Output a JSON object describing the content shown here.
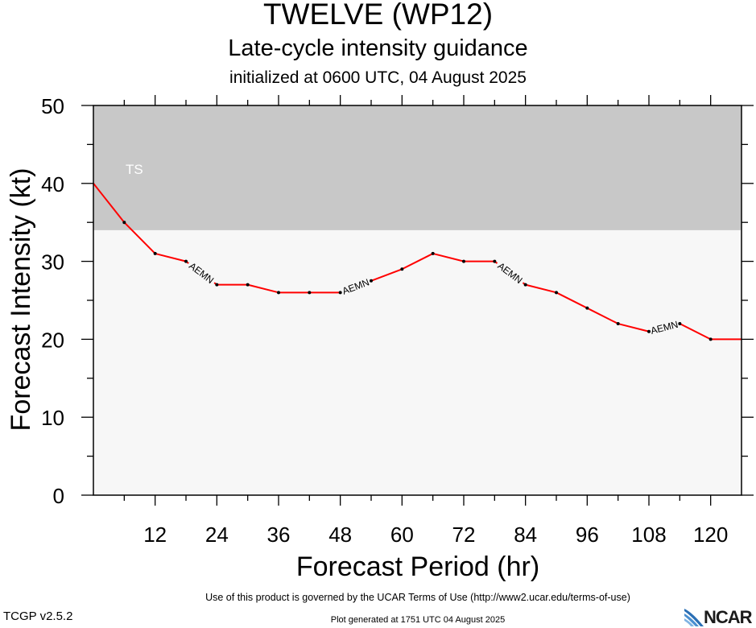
{
  "header": {
    "title": "TWELVE (WP12)",
    "subtitle": "Late-cycle intensity guidance",
    "init": "initialized at 0600 UTC, 04 August 2025"
  },
  "footer": {
    "terms": "Use of this product is governed by the UCAR Terms of Use (http://www2.ucar.edu/terms-of-use)",
    "version": "TCGP v2.5.2",
    "generated": "Plot generated at 1751 UTC   04 August 2025",
    "logo": "NCAR",
    "logo_icon": "ncar-swoosh-icon"
  },
  "colors": {
    "ts_band": "#c8c8c8",
    "below_ts": "#f7f7f7",
    "series": "#ff0000"
  },
  "chart_data": {
    "type": "line",
    "xlabel": "Forecast Period (hr)",
    "ylabel": "Forecast Intensity (kt)",
    "xlim": [
      0,
      126
    ],
    "ylim": [
      0,
      50
    ],
    "xticks": [
      12,
      24,
      36,
      48,
      60,
      72,
      84,
      96,
      108,
      120
    ],
    "yticks": [
      0,
      10,
      20,
      30,
      40,
      50
    ],
    "bands": [
      {
        "label": "TS",
        "from": 34,
        "to": 50
      }
    ],
    "series": [
      {
        "name": "AEMN",
        "x": [
          0,
          6,
          12,
          18,
          24,
          30,
          36,
          42,
          48,
          54,
          60,
          66,
          72,
          78,
          84,
          90,
          96,
          102,
          108,
          114,
          120,
          126
        ],
        "y": [
          40,
          35,
          31,
          30,
          27,
          27,
          26,
          26,
          26,
          27.5,
          29,
          31,
          30,
          30,
          27,
          26,
          24,
          22,
          21,
          22,
          20,
          20
        ]
      }
    ]
  }
}
